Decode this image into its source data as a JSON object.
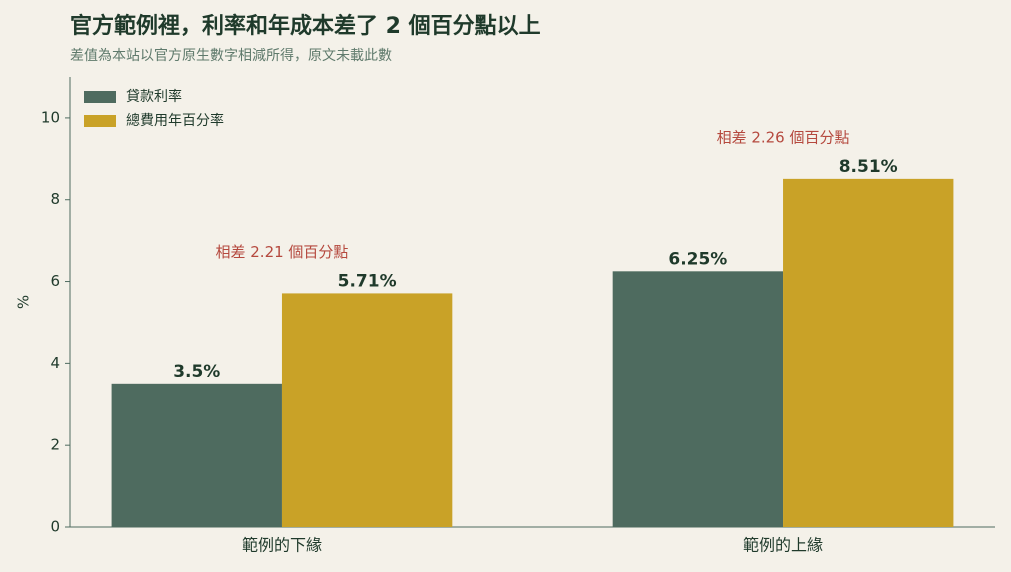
{
  "chart_data": {
    "type": "bar",
    "title": "官方範例裡，利率和年成本差了 2 個百分點以上",
    "subtitle": "差值為本站以官方原生數字相減所得，原文未載此數",
    "ylabel": "%",
    "categories": [
      "範例的下緣",
      "範例的上緣"
    ],
    "series": [
      {
        "name": "貸款利率",
        "color": "#4e6b5f",
        "values": [
          3.5,
          6.25
        ],
        "value_labels": [
          "3.5%",
          "6.25%"
        ]
      },
      {
        "name": "總費用年百分率",
        "color": "#c9a227",
        "values": [
          5.71,
          8.51
        ],
        "value_labels": [
          "5.71%",
          "8.51%"
        ]
      }
    ],
    "annotations": [
      "相差 2.21 個百分點",
      "相差 2.26 個百分點"
    ],
    "ylim": [
      0,
      11
    ],
    "yticks": [
      0,
      2,
      4,
      6,
      8,
      10
    ],
    "legend": "upper left"
  }
}
